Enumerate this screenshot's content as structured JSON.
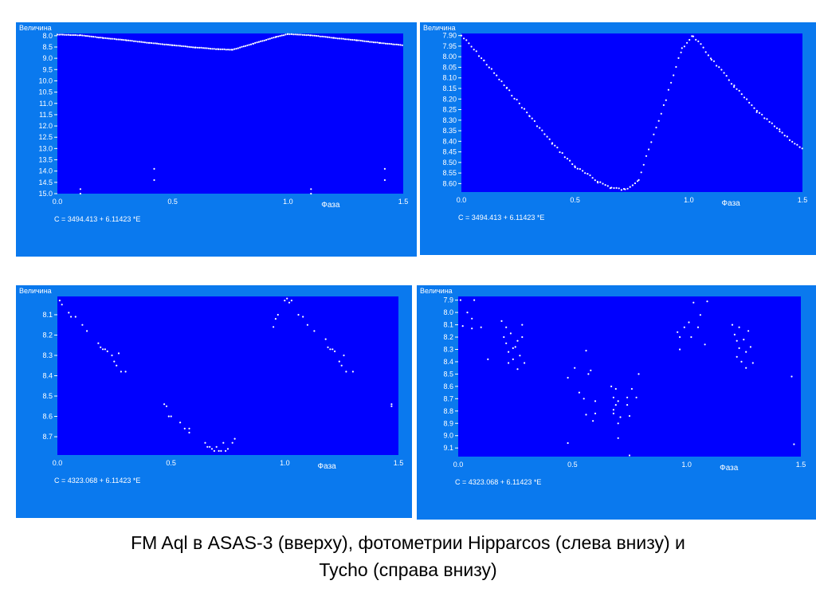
{
  "caption": {
    "line1": "FM Aql в ASAS-3 (вверху), фотометрии Hipparcos (слева внизу) и",
    "line2": "Tycho (справа внизу)"
  },
  "colors": {
    "panel": "#0a79ee",
    "plot": "#0000ff",
    "points": "#ffffff"
  },
  "chart_data": [
    {
      "type": "scatter",
      "ylabel": "Величина",
      "xlabel": "Фаза",
      "equation": "C = 3494.413 + 6.11423 *E",
      "xlim": [
        0,
        1.5
      ],
      "ylim": [
        15.0,
        7.9
      ],
      "y_inverted": true,
      "xticks": [
        "0.0",
        "0.5",
        "1.0",
        "1.5"
      ],
      "yticks": [
        "8.0",
        "8.5",
        "9.0",
        "9.5",
        "10.0",
        "10.5",
        "11.0",
        "11.5",
        "12.0",
        "12.5",
        "13.0",
        "13.5",
        "14.0",
        "14.5",
        "15.0"
      ],
      "outliers": [
        [
          0.1,
          14.8
        ],
        [
          0.1,
          15.0
        ],
        [
          0.42,
          13.9
        ],
        [
          0.42,
          14.4
        ],
        [
          1.1,
          14.8
        ],
        [
          1.1,
          15.0
        ],
        [
          1.42,
          13.9
        ],
        [
          1.42,
          14.4
        ]
      ],
      "curve": [
        [
          0.0,
          7.95
        ],
        [
          0.1,
          7.98
        ],
        [
          0.2,
          8.1
        ],
        [
          0.3,
          8.2
        ],
        [
          0.4,
          8.32
        ],
        [
          0.5,
          8.42
        ],
        [
          0.6,
          8.52
        ],
        [
          0.7,
          8.6
        ],
        [
          0.76,
          8.62
        ],
        [
          0.85,
          8.35
        ],
        [
          0.95,
          8.05
        ],
        [
          1.0,
          7.93
        ],
        [
          1.1,
          7.98
        ],
        [
          1.2,
          8.1
        ],
        [
          1.3,
          8.2
        ],
        [
          1.4,
          8.32
        ],
        [
          1.5,
          8.42
        ]
      ],
      "series": [
        {
          "points": []
        }
      ]
    },
    {
      "type": "scatter",
      "ylabel": "Величина",
      "xlabel": "Фаза",
      "equation": "C = 3494.413 + 6.11423 *E",
      "xlim": [
        0,
        1.5
      ],
      "ylim": [
        8.64,
        7.89
      ],
      "y_inverted": true,
      "xticks": [
        "0.0",
        "0.5",
        "1.0",
        "1.5"
      ],
      "yticks": [
        "7.90",
        "7.95",
        "8.00",
        "8.05",
        "8.10",
        "8.15",
        "8.20",
        "8.25",
        "8.30",
        "8.35",
        "8.40",
        "8.45",
        "8.50",
        "8.55",
        "8.60"
      ],
      "curve": [
        [
          0.0,
          7.9
        ],
        [
          0.1,
          8.02
        ],
        [
          0.2,
          8.15
        ],
        [
          0.3,
          8.28
        ],
        [
          0.4,
          8.41
        ],
        [
          0.5,
          8.52
        ],
        [
          0.6,
          8.59
        ],
        [
          0.66,
          8.62
        ],
        [
          0.72,
          8.63
        ],
        [
          0.78,
          8.58
        ],
        [
          0.9,
          8.2
        ],
        [
          0.97,
          7.96
        ],
        [
          1.02,
          7.9
        ],
        [
          1.1,
          8.01
        ],
        [
          1.2,
          8.14
        ],
        [
          1.3,
          8.26
        ],
        [
          1.4,
          8.35
        ],
        [
          1.5,
          8.44
        ]
      ],
      "series": [
        {
          "points": []
        }
      ]
    },
    {
      "type": "scatter",
      "ylabel": "Величина",
      "xlabel": "Фаза",
      "equation": "C = 4323.068 + 6.11423 *E",
      "xlim": [
        0,
        1.5
      ],
      "ylim": [
        8.79,
        8.01
      ],
      "y_inverted": true,
      "xticks": [
        "0.0",
        "0.5",
        "1.0",
        "1.5"
      ],
      "yticks": [
        "8.1",
        "8.2",
        "8.3",
        "8.4",
        "8.5",
        "8.6",
        "8.7"
      ],
      "series": [
        {
          "points": [
            [
              0.01,
              8.03
            ],
            [
              0.02,
              8.05
            ],
            [
              0.05,
              8.09
            ],
            [
              0.06,
              8.11
            ],
            [
              0.08,
              8.11
            ],
            [
              0.11,
              8.15
            ],
            [
              0.13,
              8.18
            ],
            [
              0.18,
              8.24
            ],
            [
              0.19,
              8.26
            ],
            [
              0.2,
              8.27
            ],
            [
              0.21,
              8.27
            ],
            [
              0.22,
              8.28
            ],
            [
              0.24,
              8.3
            ],
            [
              0.25,
              8.33
            ],
            [
              0.26,
              8.35
            ],
            [
              0.27,
              8.29
            ],
            [
              0.28,
              8.38
            ],
            [
              0.3,
              8.38
            ],
            [
              0.47,
              8.54
            ],
            [
              0.48,
              8.55
            ],
            [
              0.49,
              8.6
            ],
            [
              0.5,
              8.6
            ],
            [
              0.54,
              8.63
            ],
            [
              0.56,
              8.66
            ],
            [
              0.58,
              8.66
            ],
            [
              0.58,
              8.68
            ],
            [
              0.65,
              8.73
            ],
            [
              0.66,
              8.75
            ],
            [
              0.67,
              8.75
            ],
            [
              0.68,
              8.76
            ],
            [
              0.69,
              8.77
            ],
            [
              0.7,
              8.75
            ],
            [
              0.71,
              8.77
            ],
            [
              0.72,
              8.77
            ],
            [
              0.73,
              8.73
            ],
            [
              0.74,
              8.77
            ],
            [
              0.75,
              8.76
            ],
            [
              0.77,
              8.73
            ],
            [
              0.78,
              8.71
            ],
            [
              0.95,
              8.16
            ],
            [
              0.96,
              8.12
            ],
            [
              0.97,
              8.1
            ],
            [
              1.0,
              8.03
            ],
            [
              1.01,
              8.02
            ],
            [
              1.02,
              8.04
            ],
            [
              1.03,
              8.03
            ],
            [
              1.06,
              8.1
            ],
            [
              1.08,
              8.11
            ],
            [
              1.1,
              8.15
            ],
            [
              1.13,
              8.18
            ],
            [
              1.18,
              8.22
            ],
            [
              1.19,
              8.26
            ],
            [
              1.2,
              8.27
            ],
            [
              1.21,
              8.27
            ],
            [
              1.22,
              8.28
            ],
            [
              1.24,
              8.33
            ],
            [
              1.25,
              8.35
            ],
            [
              1.26,
              8.3
            ],
            [
              1.27,
              8.38
            ],
            [
              1.3,
              8.38
            ],
            [
              1.47,
              8.54
            ],
            [
              1.47,
              8.55
            ]
          ]
        }
      ]
    },
    {
      "type": "scatter",
      "ylabel": "Величина",
      "xlabel": "Фаза",
      "equation": "C = 4323.068 + 6.11423 *E",
      "xlim": [
        0,
        1.5
      ],
      "ylim": [
        9.17,
        7.87
      ],
      "y_inverted": true,
      "xticks": [
        "0.0",
        "0.5",
        "1.0",
        "1.5"
      ],
      "yticks": [
        "7.9",
        "8.0",
        "8.1",
        "8.2",
        "8.3",
        "8.4",
        "8.5",
        "8.6",
        "8.7",
        "8.8",
        "8.9",
        "9.0",
        "9.1"
      ],
      "series": [
        {
          "points": [
            [
              0.01,
              7.9
            ],
            [
              0.02,
              8.11
            ],
            [
              0.04,
              8.0
            ],
            [
              0.06,
              8.05
            ],
            [
              0.06,
              8.13
            ],
            [
              0.07,
              7.9
            ],
            [
              0.1,
              8.12
            ],
            [
              0.13,
              8.38
            ],
            [
              0.19,
              8.07
            ],
            [
              0.2,
              8.2
            ],
            [
              0.21,
              8.12
            ],
            [
              0.21,
              8.25
            ],
            [
              0.22,
              8.32
            ],
            [
              0.22,
              8.41
            ],
            [
              0.23,
              8.17
            ],
            [
              0.24,
              8.29
            ],
            [
              0.24,
              8.38
            ],
            [
              0.25,
              8.28
            ],
            [
              0.26,
              8.46
            ],
            [
              0.26,
              8.23
            ],
            [
              0.27,
              8.35
            ],
            [
              0.28,
              8.2
            ],
            [
              0.28,
              8.1
            ],
            [
              0.29,
              8.41
            ],
            [
              0.48,
              8.53
            ],
            [
              0.48,
              9.06
            ],
            [
              0.51,
              8.45
            ],
            [
              0.53,
              8.65
            ],
            [
              0.55,
              8.7
            ],
            [
              0.56,
              8.83
            ],
            [
              0.56,
              8.31
            ],
            [
              0.57,
              8.5
            ],
            [
              0.58,
              8.47
            ],
            [
              0.59,
              8.88
            ],
            [
              0.6,
              8.82
            ],
            [
              0.6,
              8.72
            ],
            [
              0.67,
              8.6
            ],
            [
              0.68,
              8.79
            ],
            [
              0.68,
              8.82
            ],
            [
              0.68,
              8.69
            ],
            [
              0.69,
              8.75
            ],
            [
              0.69,
              8.62
            ],
            [
              0.7,
              8.9
            ],
            [
              0.7,
              8.72
            ],
            [
              0.7,
              9.02
            ],
            [
              0.71,
              8.85
            ],
            [
              0.74,
              8.75
            ],
            [
              0.74,
              8.69
            ],
            [
              0.75,
              8.84
            ],
            [
              0.75,
              9.16
            ],
            [
              0.76,
              8.62
            ],
            [
              0.78,
              8.69
            ],
            [
              0.79,
              8.5
            ],
            [
              0.96,
              8.16
            ],
            [
              0.97,
              8.2
            ],
            [
              0.97,
              8.3
            ],
            [
              0.99,
              8.12
            ],
            [
              1.01,
              8.08
            ],
            [
              1.02,
              8.2
            ],
            [
              1.03,
              7.92
            ],
            [
              1.05,
              8.12
            ],
            [
              1.06,
              8.02
            ],
            [
              1.08,
              8.26
            ],
            [
              1.09,
              7.91
            ],
            [
              1.2,
              8.1
            ],
            [
              1.21,
              8.18
            ],
            [
              1.22,
              8.36
            ],
            [
              1.22,
              8.23
            ],
            [
              1.23,
              8.12
            ],
            [
              1.23,
              8.29
            ],
            [
              1.24,
              8.4
            ],
            [
              1.25,
              8.22
            ],
            [
              1.26,
              8.32
            ],
            [
              1.26,
              8.45
            ],
            [
              1.27,
              8.15
            ],
            [
              1.28,
              8.28
            ],
            [
              1.29,
              8.41
            ],
            [
              1.46,
              8.52
            ],
            [
              1.47,
              9.07
            ]
          ]
        }
      ]
    }
  ]
}
